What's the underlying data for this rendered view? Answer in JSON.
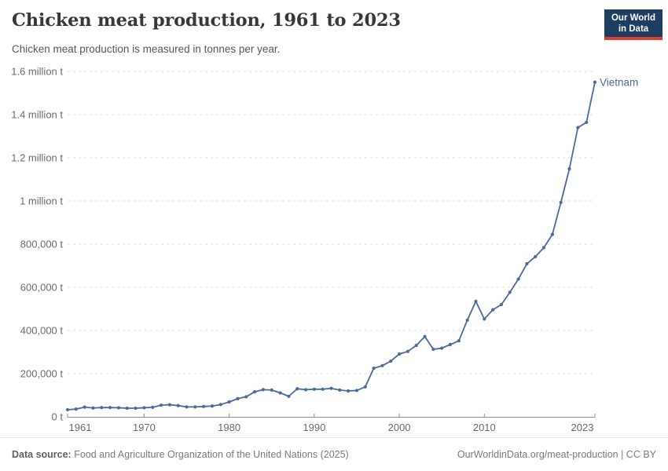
{
  "header": {
    "title": "Chicken meat production, 1961 to 2023",
    "subtitle": "Chicken meat production is measured in tonnes per year.",
    "logo": {
      "line1": "Our World",
      "line2": "in Data",
      "bg_color": "#1d3d63",
      "bar_color": "#dc3e32"
    }
  },
  "chart_data": {
    "type": "line",
    "title": "Chicken meat production, 1961 to 2023",
    "subtitle": "Chicken meat production is measured in tonnes per year.",
    "unit": "tonnes per year",
    "xlabel": "",
    "ylabel": "",
    "xlim": [
      1961,
      2023
    ],
    "ylim": [
      0,
      1600000
    ],
    "grid": "horizontal dashed",
    "legend_position": "end-of-line label",
    "x_ticks": [
      1961,
      1970,
      1980,
      1990,
      2000,
      2010,
      2023
    ],
    "y_ticks": [
      {
        "value": 0,
        "label": "0 t"
      },
      {
        "value": 200000,
        "label": "200,000 t"
      },
      {
        "value": 400000,
        "label": "400,000 t"
      },
      {
        "value": 600000,
        "label": "600,000 t"
      },
      {
        "value": 800000,
        "label": "800,000 t"
      },
      {
        "value": 1000000,
        "label": "1 million t"
      },
      {
        "value": 1200000,
        "label": "1.2 million t"
      },
      {
        "value": 1400000,
        "label": "1.4 million t"
      },
      {
        "value": 1600000,
        "label": "1.6 million t"
      }
    ],
    "years": [
      1961,
      1962,
      1963,
      1964,
      1965,
      1966,
      1967,
      1968,
      1969,
      1970,
      1971,
      1972,
      1973,
      1974,
      1975,
      1976,
      1977,
      1978,
      1979,
      1980,
      1981,
      1982,
      1983,
      1984,
      1985,
      1986,
      1987,
      1988,
      1989,
      1990,
      1991,
      1992,
      1993,
      1994,
      1995,
      1996,
      1997,
      1998,
      1999,
      2000,
      2001,
      2002,
      2003,
      2004,
      2005,
      2006,
      2007,
      2008,
      2009,
      2010,
      2011,
      2012,
      2013,
      2014,
      2015,
      2016,
      2017,
      2018,
      2019,
      2020,
      2021,
      2022,
      2023
    ],
    "series": [
      {
        "name": "Vietnam",
        "color": "#4c6a9c",
        "values": [
          33000,
          36000,
          45000,
          41000,
          43000,
          43000,
          42000,
          40000,
          40000,
          42000,
          44000,
          54000,
          56000,
          52000,
          46000,
          46000,
          48000,
          50000,
          57000,
          69000,
          84000,
          93000,
          116000,
          126000,
          124000,
          111000,
          95000,
          130000,
          126000,
          128000,
          128000,
          132000,
          124000,
          120000,
          122000,
          139000,
          225000,
          237000,
          258000,
          291000,
          303000,
          331000,
          372000,
          313000,
          318000,
          335000,
          352000,
          448000,
          535000,
          453000,
          496000,
          520000,
          577000,
          638000,
          709000,
          742000,
          784000,
          845000,
          993000,
          1149000,
          1340000,
          1364000,
          1550000
        ]
      }
    ]
  },
  "footer": {
    "source_label": "Data source:",
    "source_text": " Food and Agriculture Organization of the United Nations (2025)",
    "link_text": "OurWorldinData.org/meat-production | CC BY"
  },
  "colors": {
    "title_text": "#383838",
    "subtitle_text": "#575757",
    "tick_text": "#6b6b6b",
    "grid_line": "#dcdcdc",
    "axis_line": "#8f8f8f",
    "footer_text": "#7a7a7a",
    "series_line": "#4c6a9c"
  }
}
